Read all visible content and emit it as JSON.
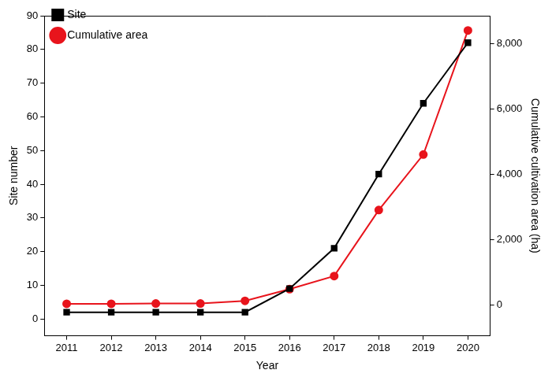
{
  "chart_data": {
    "type": "line",
    "x_label": "Year",
    "y_label": "Site number",
    "y2_label": "Cumulative cultivation area (ha)",
    "categories": [
      "2011",
      "2012",
      "2013",
      "2014",
      "2015",
      "2016",
      "2017",
      "2018",
      "2019",
      "2020"
    ],
    "series": [
      {
        "name": "Site",
        "color": "#000000",
        "marker": "square",
        "line_style": "solid",
        "values": [
          2,
          2,
          2,
          2,
          2,
          9,
          21,
          43,
          64,
          82
        ]
      },
      {
        "name": "Cumulative area",
        "color": "#e8141c",
        "marker": "circle",
        "line_style": "solid",
        "axis": "y2",
        "values": [
          30,
          30,
          40,
          40,
          120,
          480,
          880,
          2900,
          4600,
          8400
        ]
      }
    ],
    "ylim": [
      -5,
      90
    ],
    "yticks": [
      0,
      10,
      20,
      30,
      40,
      50,
      60,
      70,
      80,
      90
    ],
    "y2lim": [
      -950,
      8850
    ],
    "y2ticks": [
      0,
      {
        "value": 2000,
        "label": "2,000"
      },
      {
        "value": 4000,
        "label": "4,000"
      },
      {
        "value": 6000,
        "label": "6,000"
      },
      {
        "value": 8000,
        "label": "8,000"
      }
    ],
    "grid": false,
    "legend": "upper left"
  }
}
